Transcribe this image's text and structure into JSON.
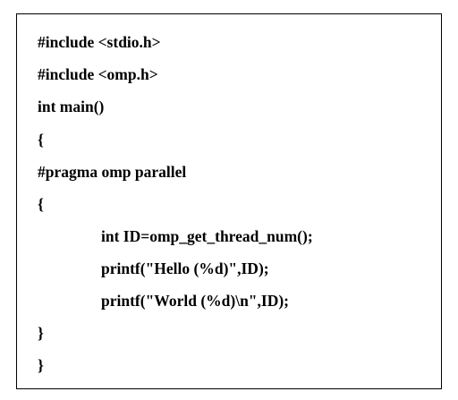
{
  "code": {
    "lines": [
      "#include <stdio.h>",
      "#include <omp.h>",
      "int main()",
      "{",
      "#pragma omp parallel",
      "{",
      "int ID=omp_get_thread_num();",
      "printf(\"Hello (%d)\",ID);",
      "printf(\"World (%d)\\n\",ID);",
      "}",
      "}"
    ]
  }
}
